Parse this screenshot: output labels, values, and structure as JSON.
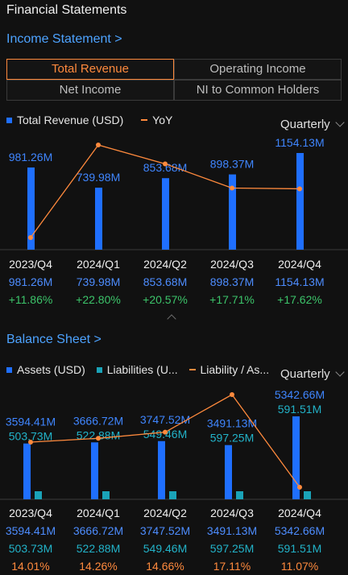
{
  "page_title": "Financial Statements",
  "income": {
    "link": "Income Statement >",
    "tabs": [
      "Total Revenue",
      "Operating Income",
      "Net Income",
      "NI to Common Holders"
    ],
    "active_tab": 0,
    "legend": {
      "bar": "Total Revenue (USD)",
      "line": "YoY"
    },
    "period": "Quarterly",
    "labels": [
      "981.26M",
      "739.98M",
      "853.68M",
      "898.37M",
      "1154.13M"
    ],
    "yoy_labels": [
      "+11.86%",
      "+22.80%",
      "+20.57%",
      "+17.71%",
      "+17.62%"
    ]
  },
  "balance": {
    "link": "Balance Sheet >",
    "legend": {
      "bar1": "Assets (USD)",
      "bar2": "Liabilities (U...",
      "line": "Liability / As..."
    },
    "period": "Quarterly",
    "assets_labels": [
      "3594.41M",
      "3666.72M",
      "3747.52M",
      "3491.13M",
      "5342.66M"
    ],
    "liab_labels": [
      "503.73M",
      "522.88M",
      "549.46M",
      "597.25M",
      "591.51M"
    ],
    "ratio_labels": [
      "14.01%",
      "14.26%",
      "14.66%",
      "17.11%",
      "11.07%"
    ]
  },
  "colors": {
    "bar": "#1f6fff",
    "bar2": "#1aa3b8",
    "line": "#ff8a3d",
    "active": "#ff8a3d",
    "positive": "#3cc46a"
  },
  "chart_data": [
    {
      "type": "bar",
      "categories": [
        "2023/Q4",
        "2024/Q1",
        "2024/Q2",
        "2024/Q3",
        "2024/Q4"
      ],
      "series": [
        {
          "name": "Total Revenue (USD)",
          "values": [
            981.26,
            739.98,
            853.68,
            898.37,
            1154.13
          ]
        },
        {
          "name": "YoY",
          "values": [
            11.86,
            22.8,
            20.57,
            17.71,
            17.62
          ]
        }
      ]
    },
    {
      "type": "bar",
      "categories": [
        "2023/Q4",
        "2024/Q1",
        "2024/Q2",
        "2024/Q3",
        "2024/Q4"
      ],
      "series": [
        {
          "name": "Assets (USD)",
          "values": [
            3594.41,
            3666.72,
            3747.52,
            3491.13,
            5342.66
          ]
        },
        {
          "name": "Liabilities (U...",
          "values": [
            503.73,
            522.88,
            549.46,
            597.25,
            591.51
          ]
        },
        {
          "name": "Liability / As...",
          "values": [
            14.01,
            14.26,
            14.66,
            17.11,
            11.07
          ]
        }
      ]
    }
  ]
}
